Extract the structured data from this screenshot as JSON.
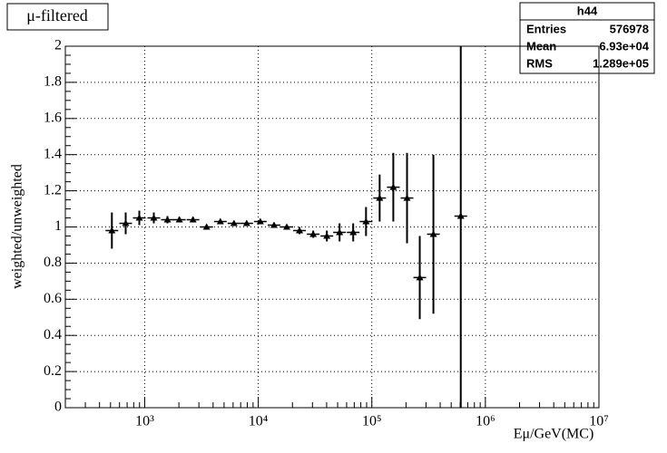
{
  "chart_data": {
    "type": "errorbar",
    "title": "μ-filtered",
    "xlabel": "Eμ/GeV(MC)",
    "ylabel": "weighted/unweighted",
    "xscale": "log",
    "grid": true,
    "color": "#000000",
    "xlim": [
      200,
      10000000
    ],
    "xticks": [
      {
        "value": 1000,
        "label": "10³"
      },
      {
        "value": 10000,
        "label": "10⁴"
      },
      {
        "value": 100000,
        "label": "10⁵"
      },
      {
        "value": 1000000,
        "label": "10⁶"
      },
      {
        "value": 10000000,
        "label": "10⁷"
      }
    ],
    "ylim": [
      0,
      2
    ],
    "yticks": [
      0,
      0.2,
      0.4,
      0.6,
      0.8,
      1,
      1.2,
      1.4,
      1.6,
      1.8,
      2
    ],
    "x": [
      514,
      680,
      896,
      1203,
      1586,
      2017,
      2662,
      3508,
      4634,
      6109,
      7907,
      10420,
      13770,
      17820,
      23070,
      30470,
      40180,
      52000,
      68550,
      88900,
      117200,
      154600,
      204200,
      264300,
      348500,
      607000
    ],
    "values": [
      0.98,
      1.02,
      1.05,
      1.05,
      1.04,
      1.04,
      1.04,
      1.0,
      1.03,
      1.02,
      1.02,
      1.03,
      1.01,
      1.0,
      0.98,
      0.96,
      0.95,
      0.97,
      0.97,
      1.03,
      1.16,
      1.22,
      1.16,
      0.72,
      0.96,
      1.06
    ],
    "errors": [
      0.1,
      0.06,
      0.04,
      0.03,
      0.02,
      0.015,
      0.015,
      0.01,
      0.01,
      0.01,
      0.01,
      0.01,
      0.01,
      0.01,
      0.02,
      0.02,
      0.03,
      0.05,
      0.05,
      0.08,
      0.13,
      0.19,
      0.25,
      0.23,
      0.44,
      1.5
    ],
    "stats": {
      "name": "h44",
      "entries_label": "Entries",
      "entries": 576978,
      "mean_label": "Mean",
      "mean": "6.93e+04",
      "rms_label": "RMS",
      "rms": "1.289e+05"
    }
  }
}
